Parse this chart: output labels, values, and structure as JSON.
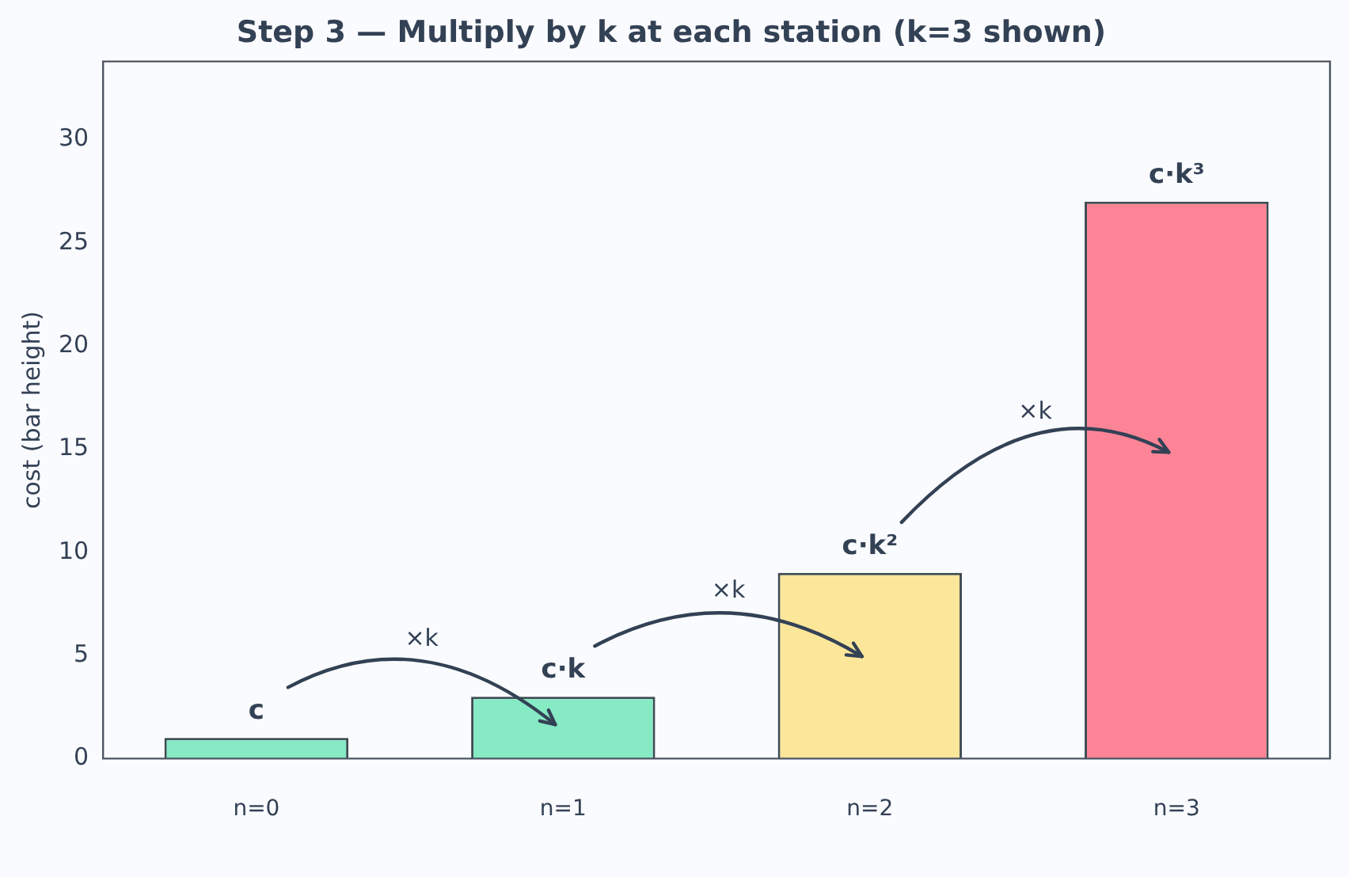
{
  "chart_data": {
    "type": "bar",
    "title": "Step 3 — Multiply by k at each station (k=3 shown)",
    "ylabel": "cost (bar height)",
    "categories": [
      "n=0",
      "n=1",
      "n=2",
      "n=3"
    ],
    "values": [
      1,
      3,
      9,
      27
    ],
    "colors": [
      "#86eac4",
      "#86eac4",
      "#fce69a",
      "#fd8497"
    ],
    "value_labels": [
      "c",
      "c·k",
      "c·k²",
      "c·k³"
    ],
    "annotations": [
      "×k",
      "×k",
      "×k"
    ],
    "ylim": [
      0,
      33.8
    ],
    "yticks": [
      0,
      5,
      10,
      15,
      20,
      25,
      30
    ],
    "grid": false,
    "legend": false
  }
}
